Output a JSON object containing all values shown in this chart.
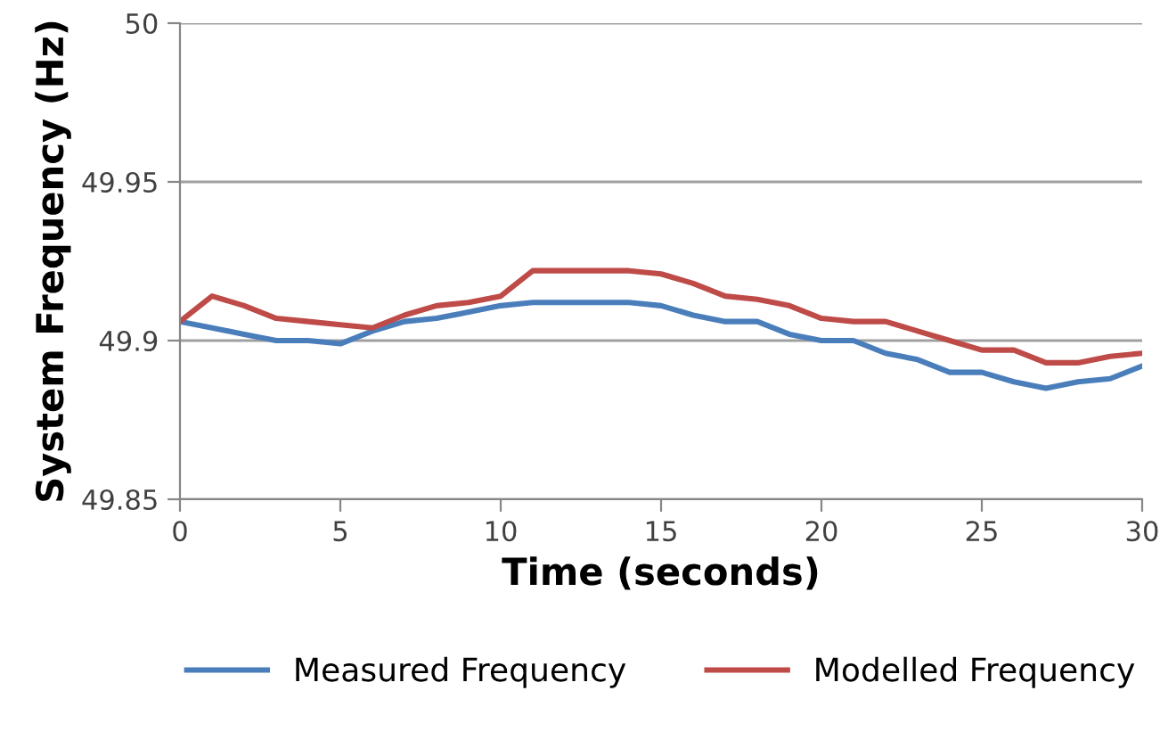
{
  "chart_data": {
    "type": "line",
    "xlabel": "Time (seconds)",
    "ylabel": "System Frequency (Hz)",
    "x": [
      0,
      1,
      2,
      3,
      4,
      5,
      6,
      7,
      8,
      9,
      10,
      11,
      12,
      13,
      14,
      15,
      16,
      17,
      18,
      19,
      20,
      21,
      22,
      23,
      24,
      25,
      26,
      27,
      28,
      29,
      30
    ],
    "series": [
      {
        "name": "Measured Frequency",
        "color": "#4a7ebb",
        "values": [
          49.906,
          49.904,
          49.902,
          49.9,
          49.9,
          49.899,
          49.903,
          49.906,
          49.907,
          49.909,
          49.911,
          49.912,
          49.912,
          49.912,
          49.912,
          49.911,
          49.908,
          49.906,
          49.906,
          49.902,
          49.9,
          49.9,
          49.896,
          49.894,
          49.89,
          49.89,
          49.887,
          49.885,
          49.887,
          49.888,
          49.892
        ]
      },
      {
        "name": "Modelled Frequency",
        "color": "#be4b48",
        "values": [
          49.906,
          49.914,
          49.911,
          49.907,
          49.906,
          49.905,
          49.904,
          49.908,
          49.911,
          49.912,
          49.914,
          49.922,
          49.922,
          49.922,
          49.922,
          49.921,
          49.918,
          49.914,
          49.913,
          49.911,
          49.907,
          49.906,
          49.906,
          49.903,
          49.9,
          49.897,
          49.897,
          49.893,
          49.893,
          49.895,
          49.896
        ]
      }
    ],
    "xlim": [
      0,
      30
    ],
    "xticks": [
      0,
      5,
      10,
      15,
      20,
      25,
      30
    ],
    "ylim": [
      49.85,
      50
    ],
    "yticks": [
      49.85,
      49.9,
      49.95,
      50
    ],
    "grid": "y",
    "legend": "bottom",
    "marker": "none",
    "line_style": "solid"
  }
}
